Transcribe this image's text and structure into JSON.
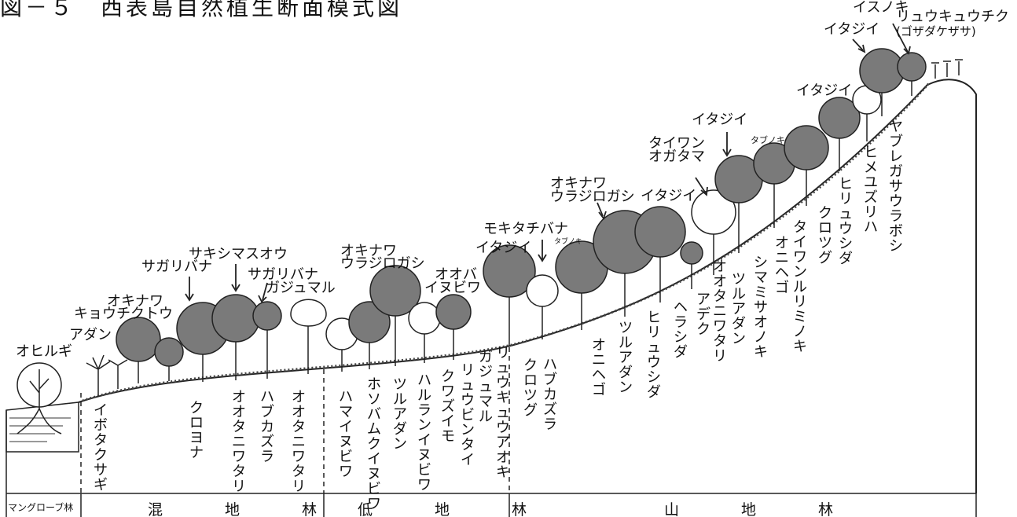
{
  "title": "図－５　西表島自然植生断面模式図",
  "zones": {
    "mangrove": "マングローブ林",
    "mixed": "混　地　林",
    "lowland": "低　地　林",
    "mountain": "山　地　林"
  },
  "upper_labels": {
    "ohirugi": "オヒルギ",
    "adan": "アダン",
    "okinawa1": "オキナワ",
    "kyouchikutou": "キョウチクトウ",
    "sagaribana1": "サガリバナ",
    "sakishimasuou": "サキシマスオウ",
    "sagaribana2": "サガリバナ",
    "gajumaru": "ガジュマル",
    "okinawa2": "オキナワ",
    "urajirogashi1": "ウラジロガシ",
    "oobaa": "オオバ",
    "inubiwa": "イヌビワ",
    "itajii1": "イタジイ",
    "mokitachibana": "モキタチバナ",
    "tabunoki_small1": "タブノキ",
    "okinawa3": "オキナワ",
    "urajirogashi2": "ウラジロガシ",
    "itajii2": "イタジイ",
    "taiwan": "タイワン",
    "ogatama": "オガタマ",
    "itajii3": "イタジイ",
    "tabunoki": "タブノキ",
    "itajii4": "イタジイ",
    "itajii5": "イタジイ",
    "isunoki": "イスノキ",
    "ryuukyuuchiku": "リュウキュウチク",
    "kozasa": "(ゴザダケザサ)"
  },
  "lower_labels": [
    "イボタクサギ",
    "クロヨナ",
    "オオタニワタリ",
    "ハブカズラ",
    "オオタニワタリ",
    "ハマイヌビワ",
    "ホソバムクイヌビワ",
    "ツルアダン",
    "ハルランイヌビワ",
    "クワズイモ",
    "リュウビンタイ",
    "ガジュマル",
    "リュウキュウアオキ",
    "クロツグ",
    "ハブカズラ",
    "オニヘゴ",
    "ツルアダン",
    "ヒリュウシダ",
    "ヘラシダ",
    "アデク",
    "オオタニワタリ",
    "ツルアダン",
    "シマミサオノキ",
    "オニヘゴ",
    "タイワンルリミノキ",
    "クロツグ",
    "ヒリュウシダ",
    "ヒメユズリハ",
    "ヤブレガサウラボシ"
  ],
  "colors": {
    "canopy_dark": "#7a7a7a",
    "canopy_light": "#ffffff",
    "line": "#222222"
  }
}
